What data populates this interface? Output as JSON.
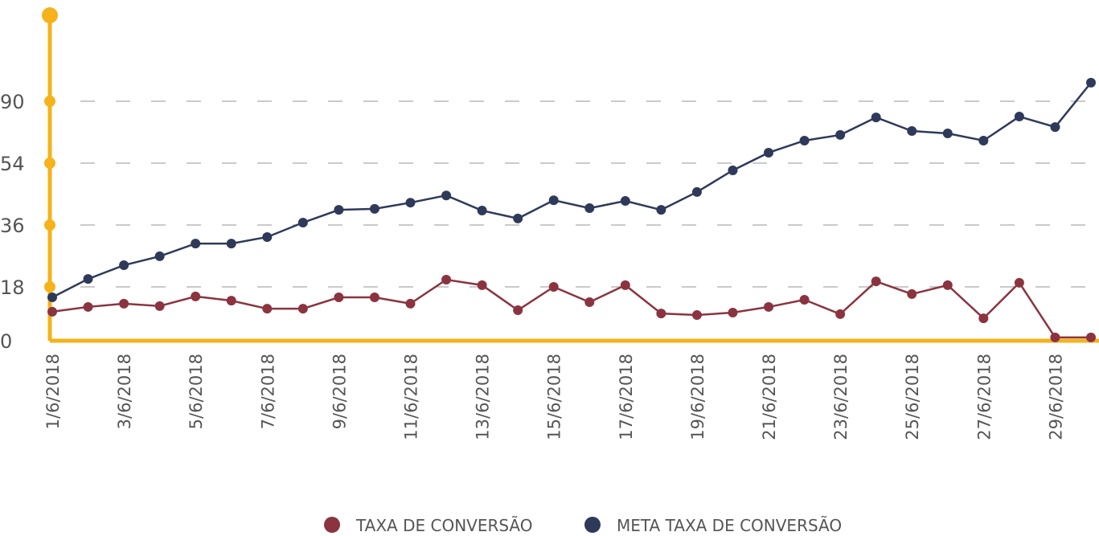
{
  "chart_data": {
    "type": "line",
    "categories": [
      "1/6/2018",
      null,
      "3/6/2018",
      null,
      "5/6/2018",
      null,
      "7/6/2018",
      null,
      "9/6/2018",
      null,
      "11/6/2018",
      null,
      "13/6/2018",
      null,
      "15/6/2018",
      null,
      "17/6/2018",
      null,
      "19/6/2018",
      null,
      "21/6/2018",
      null,
      "23/6/2018",
      null,
      "25/6/2018",
      null,
      "27/6/2018",
      null,
      "29/6/2018",
      null
    ],
    "series": [
      {
        "name": "TAXA DE CONVERSÃO",
        "color": "#8b3440",
        "values": [
          9.7,
          11.3,
          12.4,
          11.6,
          14.8,
          13.4,
          10.7,
          10.7,
          14.5,
          14.5,
          12.4,
          20.1,
          18.5,
          10.2,
          18,
          12.9,
          18.5,
          9.1,
          8.6,
          9.4,
          11.3,
          13.7,
          8.9,
          19.6,
          15.6,
          18.5,
          7.5,
          19.2,
          1.1,
          1.1
        ]
      },
      {
        "name": "META TAXA DE CONVERSÃO",
        "color": "#2f3a5a",
        "values": [
          14.5,
          20.3,
          24.3,
          26.9,
          30.6,
          30.6,
          32.5,
          36.7,
          40.4,
          40.7,
          42.5,
          44.6,
          40.2,
          37.9,
          43.2,
          40.9,
          43.0,
          40.4,
          45.6,
          51.9,
          60.1,
          67.1,
          70.4,
          80.6,
          72.7,
          71.3,
          67.1,
          81.1,
          75.0,
          100.8
        ]
      }
    ],
    "ylim": [
      0,
      140
    ],
    "yticks": [
      0,
      18,
      36,
      54,
      90
    ],
    "grid": true,
    "axis_color": "#f5b21b",
    "legend": "bottom"
  }
}
